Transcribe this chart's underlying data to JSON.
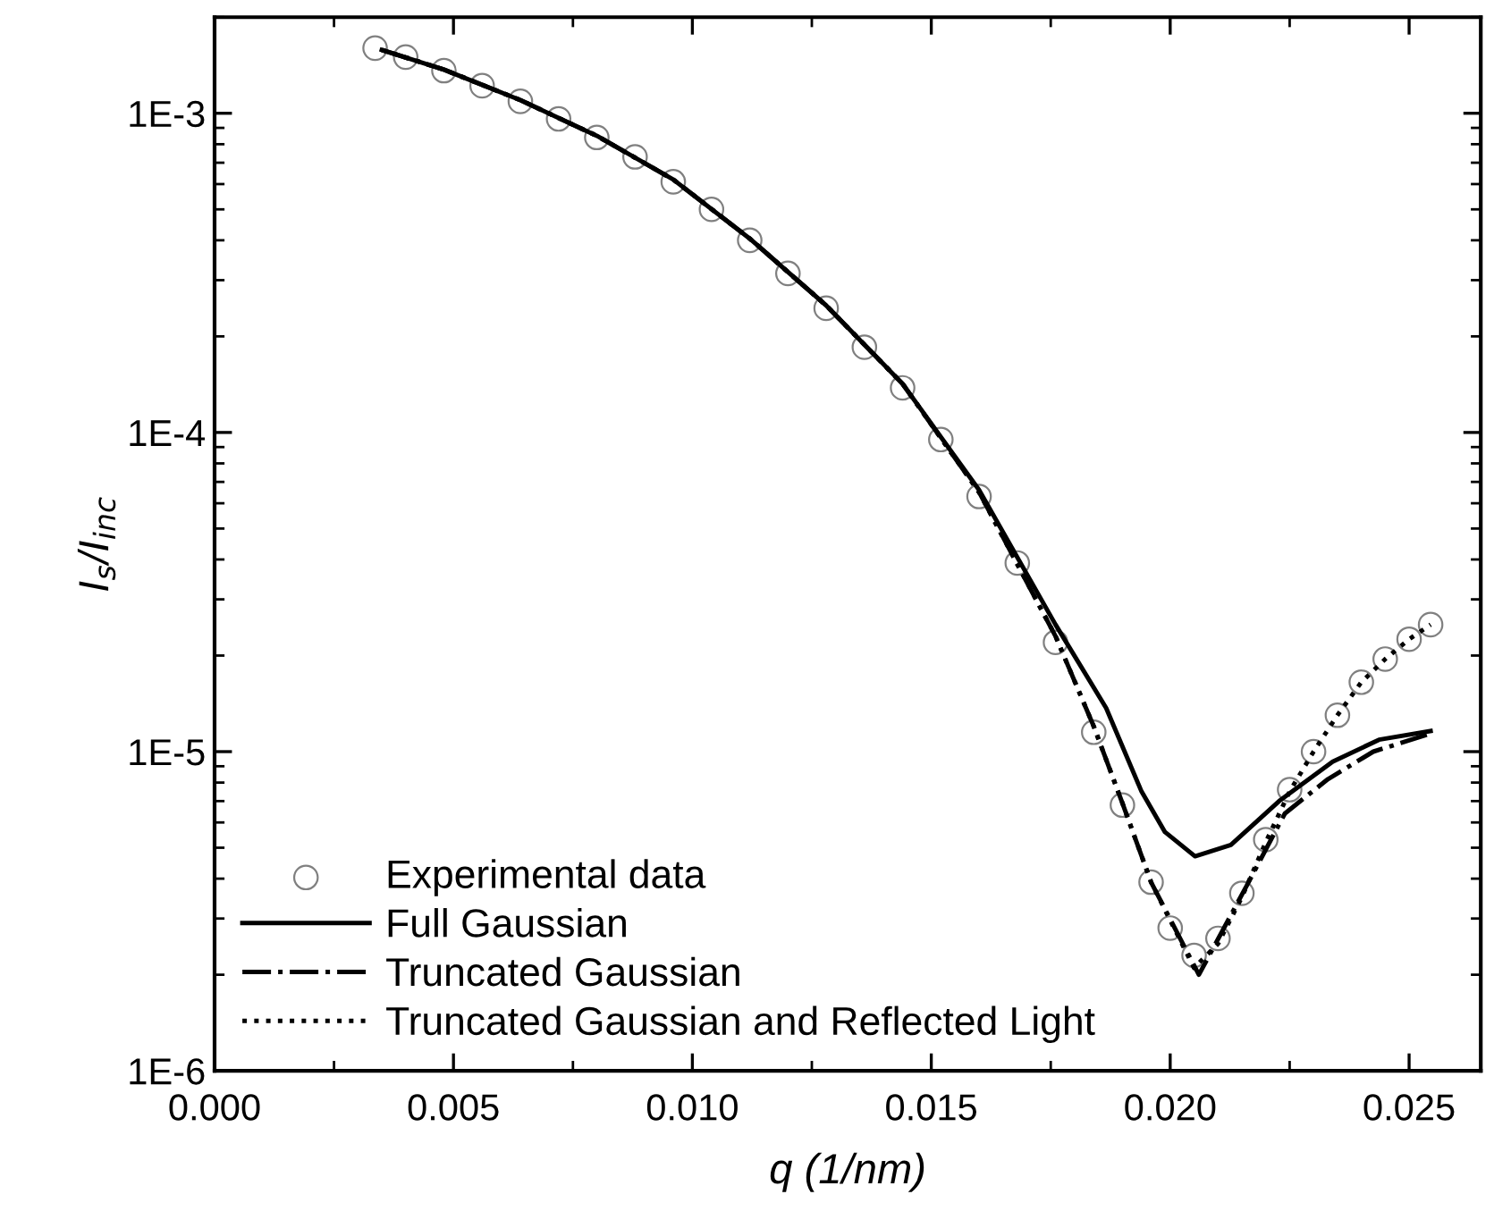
{
  "chart_data": {
    "type": "line",
    "xlabel": "q (1/nm)",
    "ylabel": "I$_{s}$/I$_{inc}$",
    "log": "y",
    "grid": false,
    "legend": "bottom left",
    "xlim": [
      0,
      0.0265
    ],
    "xticks": [
      {
        "value": 0,
        "label": "0.000"
      },
      {
        "value": 0.005,
        "label": "0.005"
      },
      {
        "value": 0.01,
        "label": "0.010"
      },
      {
        "value": 0.015,
        "label": "0.015"
      },
      {
        "value": 0.02,
        "label": "0.020"
      },
      {
        "value": 0.025,
        "label": "0.025"
      }
    ],
    "ylim": [
      1e-06,
      0.002
    ],
    "yticks": [
      {
        "value": 1e-06,
        "label": "1E-6"
      },
      {
        "value": 1e-05,
        "label": "1E-5"
      },
      {
        "value": 0.0001,
        "label": "1E-4"
      },
      {
        "value": 0.001,
        "label": "1E-3"
      }
    ],
    "series": [
      {
        "name": "Experimental data",
        "type": "scatter",
        "marker": "circle",
        "color": "#808080",
        "x": [
          0.00336,
          0.004,
          0.0048,
          0.0056,
          0.0064,
          0.0072,
          0.008,
          0.0088,
          0.0096,
          0.0104,
          0.0112,
          0.012,
          0.0128,
          0.0136,
          0.0144,
          0.0152,
          0.016,
          0.0168,
          0.0176,
          0.0184,
          0.019,
          0.0196,
          0.02,
          0.0205,
          0.021,
          0.0215,
          0.022,
          0.0225,
          0.023,
          0.0235,
          0.024,
          0.0245,
          0.025,
          0.02545
        ],
        "values": [
          0.0016,
          0.0015,
          0.00136,
          0.00122,
          0.00109,
          0.00096,
          0.00084,
          0.00073,
          0.00061,
          0.0005,
          0.0004,
          0.000315,
          0.000245,
          0.000185,
          0.000138,
          9.5e-05,
          6.3e-05,
          3.9e-05,
          2.2e-05,
          1.15e-05,
          6.8e-06,
          3.9e-06,
          2.8e-06,
          2.3e-06,
          2.6e-06,
          3.6e-06,
          5.3e-06,
          7.6e-06,
          1e-05,
          1.3e-05,
          1.65e-05,
          1.95e-05,
          2.25e-05,
          2.5e-05
        ]
      },
      {
        "name": "Full Gaussian",
        "type": "line",
        "marker": "none",
        "line_style": "solid",
        "color": "#000000",
        "x": [
          0.0035,
          0.0048,
          0.0064,
          0.008,
          0.0096,
          0.0112,
          0.0128,
          0.0144,
          0.016,
          0.0176,
          0.01866,
          0.0194,
          0.01989,
          0.02052,
          0.02127,
          0.02228,
          0.0234,
          0.02437,
          0.02545
        ],
        "values": [
          0.00158,
          0.00137,
          0.0011,
          0.00085,
          0.00062,
          0.000405,
          0.00025,
          0.000142,
          6.6e-05,
          2.5e-05,
          1.37e-05,
          7.5e-06,
          5.6e-06,
          4.7e-06,
          5.1e-06,
          7e-06,
          9.3e-06,
          1.09e-05,
          1.16e-05
        ]
      },
      {
        "name": "Truncated Gaussian",
        "type": "line",
        "marker": "none",
        "line_style": "dashdot",
        "color": "#000000",
        "x": [
          0.0035,
          0.0048,
          0.0064,
          0.008,
          0.0096,
          0.0112,
          0.0128,
          0.0144,
          0.016,
          0.0176,
          0.0184,
          0.019,
          0.0196,
          0.0206,
          0.0216,
          0.0224,
          0.0233,
          0.02425,
          0.02537
        ],
        "values": [
          0.00158,
          0.00137,
          0.0011,
          0.00085,
          0.00062,
          0.000405,
          0.00025,
          0.000142,
          6.5e-05,
          2.3e-05,
          1.2e-05,
          6.9e-06,
          3.9e-06,
          2e-06,
          3.8e-06,
          6.4e-06,
          8.2e-06,
          1e-05,
          1.13e-05
        ]
      },
      {
        "name": "Truncated Gaussian and Reflected Light",
        "type": "line",
        "marker": "none",
        "line_style": "dotted",
        "color": "#000000",
        "x": [
          0.0035,
          0.0048,
          0.0064,
          0.008,
          0.0096,
          0.0112,
          0.0128,
          0.0144,
          0.016,
          0.0176,
          0.0184,
          0.019,
          0.0196,
          0.0205,
          0.021,
          0.0215,
          0.022,
          0.0225,
          0.023,
          0.0235,
          0.024,
          0.0245,
          0.025,
          0.02545
        ],
        "values": [
          0.00158,
          0.00137,
          0.0011,
          0.00085,
          0.00062,
          0.000405,
          0.00025,
          0.000142,
          6.5e-05,
          2.3e-05,
          1.2e-05,
          6.9e-06,
          3.9e-06,
          2.1e-06,
          2.5e-06,
          3.5e-06,
          5.2e-06,
          7.5e-06,
          1e-05,
          1.3e-05,
          1.65e-05,
          1.95e-05,
          2.25e-05,
          2.5e-05
        ]
      }
    ]
  }
}
